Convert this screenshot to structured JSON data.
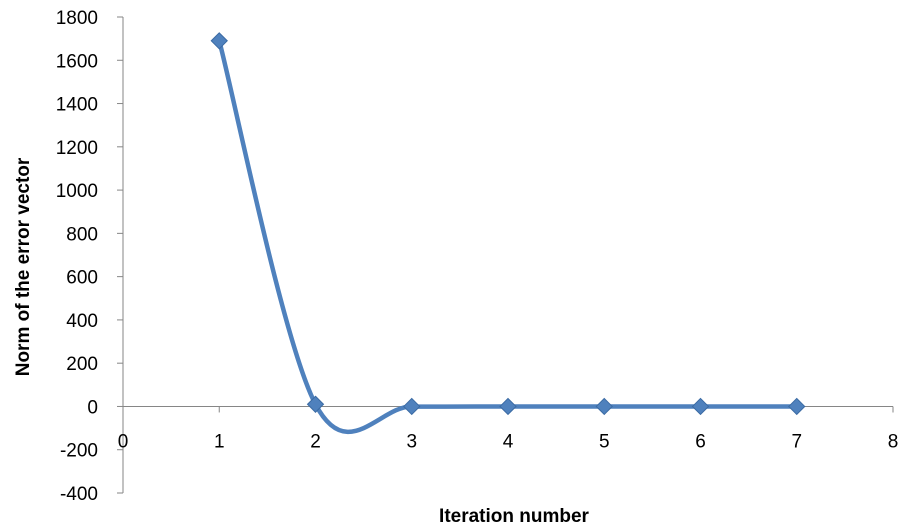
{
  "chart_data": {
    "type": "line",
    "xlabel": "Iteration number",
    "ylabel": "Norm of the error vector",
    "xlim": [
      0,
      8
    ],
    "ylim": [
      -400,
      1800
    ],
    "x_ticks": [
      0,
      1,
      2,
      3,
      4,
      5,
      6,
      7,
      8
    ],
    "y_ticks": [
      -400,
      -200,
      0,
      200,
      400,
      600,
      800,
      1000,
      1200,
      1400,
      1600,
      1800
    ],
    "x_tick_labels": [
      "0",
      "1",
      "2",
      "3",
      "4",
      "5",
      "6",
      "7",
      "8"
    ],
    "y_tick_labels": [
      "-400",
      "-200",
      "0",
      "200",
      "400",
      "600",
      "800",
      "1000",
      "1200",
      "1400",
      "1600",
      "1800"
    ],
    "smoothed": true,
    "marker": "diamond",
    "grid": false,
    "legend": false,
    "series": [
      {
        "color": "#4f81bd",
        "x": [
          1,
          2,
          3,
          4,
          5,
          6,
          7
        ],
        "y": [
          1690,
          10,
          0,
          0,
          0,
          0,
          0
        ]
      }
    ]
  }
}
